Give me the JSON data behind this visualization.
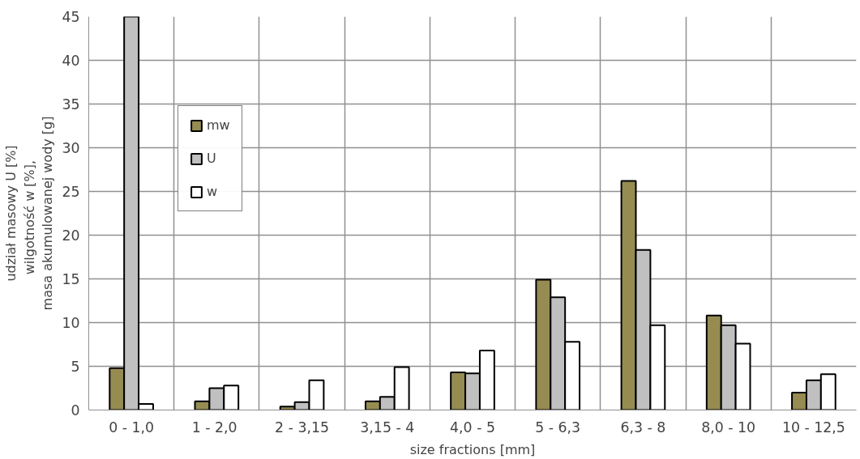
{
  "chart_data": {
    "type": "bar",
    "xlabel": "size fractions [mm]",
    "ylabel": "udział masowy U [%]\nwilgotność  w  [%],\nmasa akumulowanej wody [g]",
    "categories": [
      "0 - 1,0",
      "1  - 2,0",
      "2 - 3,15",
      "3,15 - 4",
      "4,0 - 5",
      "5 - 6,3",
      "6,3 - 8",
      "8,0 - 10",
      "10 - 12,5"
    ],
    "series": [
      {
        "name": "mw",
        "color": "#968c52",
        "values": [
          4.8,
          1.0,
          0.4,
          1.0,
          4.3,
          14.9,
          26.2,
          10.8,
          2.0
        ]
      },
      {
        "name": "U",
        "color": "#c0c0c0",
        "values": [
          45,
          2.5,
          0.9,
          1.5,
          4.2,
          12.9,
          18.3,
          9.7,
          3.4
        ]
      },
      {
        "name": "w",
        "color": "#ffffff",
        "values": [
          0.7,
          2.8,
          3.4,
          4.9,
          6.8,
          7.8,
          9.7,
          7.6,
          4.1
        ]
      }
    ],
    "ylim": [
      0,
      45
    ],
    "yticks": [
      0,
      5,
      10,
      15,
      20,
      25,
      30,
      35,
      40,
      45
    ],
    "grid": true,
    "legend": "top left"
  }
}
